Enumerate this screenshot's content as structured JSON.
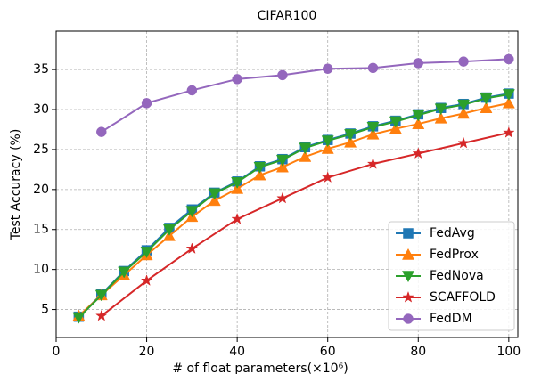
{
  "chart_data": {
    "type": "line",
    "title": "CIFAR100",
    "x_label": "# of float parameters(×10⁶)",
    "y_label": "Test Accuracy (%)",
    "xlim": [
      0,
      102
    ],
    "ylim": [
      1.5,
      39.8
    ],
    "xticks": [
      0,
      20,
      40,
      60,
      80,
      100
    ],
    "yticks": [
      5,
      10,
      15,
      20,
      25,
      30,
      35
    ],
    "grid": true,
    "legend": "lower right",
    "series": [
      {
        "name": "FedAvg",
        "color": "#1f77b4",
        "marker": "square",
        "x": [
          5,
          10,
          15,
          20,
          25,
          30,
          35,
          40,
          45,
          50,
          55,
          60,
          65,
          70,
          75,
          80,
          85,
          90,
          95,
          100
        ],
        "values": [
          4.1,
          6.9,
          9.8,
          12.4,
          15.2,
          17.5,
          19.6,
          21.0,
          22.9,
          23.8,
          25.3,
          26.2,
          27.0,
          27.9,
          28.6,
          29.4,
          30.2,
          30.7,
          31.5,
          32.0
        ]
      },
      {
        "name": "FedProx",
        "color": "#ff7f0e",
        "marker": "triangle-up",
        "x": [
          5,
          10,
          15,
          20,
          25,
          30,
          35,
          40,
          45,
          50,
          55,
          60,
          65,
          70,
          75,
          80,
          85,
          90,
          95,
          100
        ],
        "values": [
          4.2,
          6.8,
          9.3,
          11.8,
          14.2,
          16.6,
          18.6,
          20.1,
          21.8,
          22.8,
          24.1,
          25.1,
          25.9,
          26.9,
          27.6,
          28.2,
          28.9,
          29.5,
          30.2,
          30.8
        ]
      },
      {
        "name": "FedNova",
        "color": "#2ca02c",
        "marker": "triangle-down",
        "x": [
          5,
          10,
          15,
          20,
          25,
          30,
          35,
          40,
          45,
          50,
          55,
          60,
          65,
          70,
          75,
          80,
          85,
          90,
          95,
          100
        ],
        "values": [
          4.0,
          6.8,
          9.7,
          12.2,
          15.0,
          17.3,
          19.5,
          20.9,
          22.8,
          23.7,
          25.2,
          26.1,
          26.9,
          27.8,
          28.5,
          29.3,
          30.1,
          30.6,
          31.4,
          31.9
        ]
      },
      {
        "name": "SCAFFOLD",
        "color": "#d62728",
        "marker": "star",
        "x": [
          10,
          20,
          30,
          40,
          50,
          60,
          70,
          80,
          90,
          100
        ],
        "values": [
          4.2,
          8.6,
          12.6,
          16.3,
          18.9,
          21.5,
          23.2,
          24.5,
          25.8,
          27.1
        ]
      },
      {
        "name": "FedDM",
        "color": "#9467bd",
        "marker": "circle",
        "x": [
          10,
          20,
          30,
          40,
          50,
          60,
          70,
          80,
          90,
          100
        ],
        "values": [
          27.2,
          30.8,
          32.4,
          33.8,
          34.3,
          35.1,
          35.2,
          35.8,
          36.0,
          36.3
        ]
      }
    ]
  }
}
